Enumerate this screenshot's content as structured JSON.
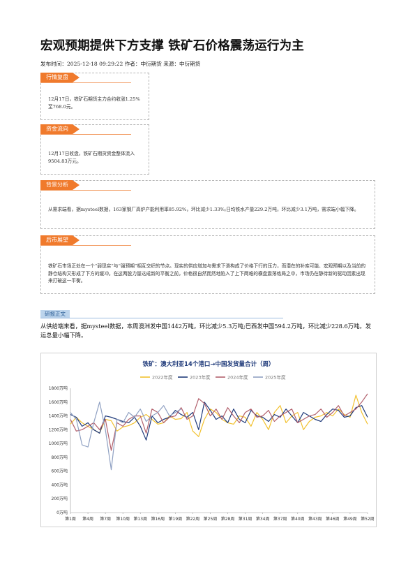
{
  "article": {
    "title": "宏观预期提供下方支撑 铁矿石价格震荡运行为主",
    "meta": "发布时间：2025-12-18 09:29:22 作者：中衍期货 来源：中衍期货"
  },
  "sections": [
    {
      "tag": "行情复盘",
      "text": "12月17日，铁矿石期货主力合约收涨1.25%至768.0元。"
    },
    {
      "tag": "资金流向",
      "text": "12月17日收盘，铁矿石期货资金整体流入9504.83万元。"
    },
    {
      "tag": "背景分析",
      "text": "从需求端看，据mysteel数据，163家钢厂高炉产能利用率85.92%，环比减少1.33%;日均铁水产量229.2万吨，环比减少3.1万吨，需求端小幅下降。"
    },
    {
      "tag": "后市展望",
      "text": "铁矿石市场正处在一个“弱现实”与“强预期”相互交织的节点。现实的供应增加与需求下滑构成了价格下行的压力，而潜在的补库可能、宏观预期以及当前的静仓结构又形成了下方的缓冲。在这两股力量达成新的平衡之前，价格很自然而然地陷入了上下两难的横盘震荡格局之中，市场仍在静待新的驱动因素出现来打破这一平衡。"
    }
  ],
  "report": {
    "heading": "研报正文",
    "paragraph": "从供给端来看，据mysteel数据，本周澳洲发中国1442万吨，环比减少5.3万吨;巴西发中国594.2万吨，环比减少228.6万吨。发运总量小幅下降。"
  },
  "chart_data": {
    "type": "line",
    "title": "铁矿：澳大利亚14个港口→中国发货量合计（周）",
    "xlabel": "",
    "ylabel": "",
    "ylim": [
      0,
      1800
    ],
    "yticks": [
      "0万吨",
      "200万吨",
      "400万吨",
      "600万吨",
      "800万吨",
      "1000万吨",
      "1200万吨",
      "1400万吨",
      "1600万吨",
      "1800万吨"
    ],
    "ytick_values": [
      0,
      200,
      400,
      600,
      800,
      1000,
      1200,
      1400,
      1600,
      1800
    ],
    "xticks": [
      "第1周",
      "第4周",
      "第7周",
      "第10周",
      "第13周",
      "第16周",
      "第19周",
      "第22周",
      "第25周",
      "第28周",
      "第31周",
      "第34周",
      "第37周",
      "第40周",
      "第43周",
      "第46周",
      "第49周",
      "第52周"
    ],
    "grid": false,
    "legend": "top-center",
    "colors": {
      "s2022": "#f2c12e",
      "s2023": "#1f3a7a",
      "s2024": "#b2606c",
      "s2025": "#8fa0c2"
    },
    "series": [
      {
        "name": "2022年度",
        "values": [
          1280,
          1380,
          1300,
          1250,
          1200,
          1150,
          1350,
          1330,
          1180,
          1240,
          1260,
          1300,
          1380,
          1420,
          1350,
          1280,
          1300,
          1400,
          1350,
          1360,
          1450,
          1180,
          1100,
          1350,
          1500,
          1450,
          1350,
          1300,
          1280,
          1400,
          1380,
          1250,
          1450,
          1350,
          1200,
          1450,
          1550,
          1300,
          1400,
          1450,
          1200,
          1320,
          1380,
          1400,
          1450,
          1400,
          1500,
          1420,
          1380,
          1700,
          1450,
          1280
        ]
      },
      {
        "name": "2023年度",
        "values": [
          1420,
          1380,
          1250,
          1300,
          1200,
          1150,
          1400,
          1380,
          1350,
          1320,
          1300,
          1380,
          1250,
          1050,
          1400,
          1300,
          1350,
          1380,
          1480,
          1420,
          1380,
          1450,
          1200,
          1600,
          1480,
          1350,
          1400,
          1300,
          1500,
          1350,
          1300,
          1480,
          1400,
          1380,
          1320,
          1420,
          1380,
          1500,
          1400,
          1300,
          1450,
          1400,
          1350,
          1320,
          1420,
          1500,
          1480,
          1380,
          1400,
          1520,
          1550,
          1380
        ]
      },
      {
        "name": "2024年度",
        "values": [
          1350,
          1180,
          1200,
          1250,
          1300,
          1200,
          1350,
          900,
          1300,
          1250,
          1350,
          1400,
          1400,
          1150,
          1500,
          1450,
          1300,
          1380,
          1400,
          1520,
          1350,
          1400,
          1650,
          1580,
          1400,
          1500,
          1350,
          1520,
          1400,
          1300,
          1450,
          1500,
          1380,
          1400,
          1480,
          1320,
          1400,
          1450,
          1500,
          1300,
          1350,
          1400,
          1420,
          1500,
          1380,
          1450,
          1550,
          1400,
          1450,
          1500,
          1600,
          1720
        ]
      },
      {
        "name": "2025年度",
        "values": [
          1450,
          1350,
          980,
          950,
          1300,
          1600,
          1200,
          620,
          1350,
          1300,
          1450,
          1380,
          1500,
          1320,
          1400,
          1450,
          1550,
          1400,
          1450,
          1500
        ]
      }
    ]
  }
}
